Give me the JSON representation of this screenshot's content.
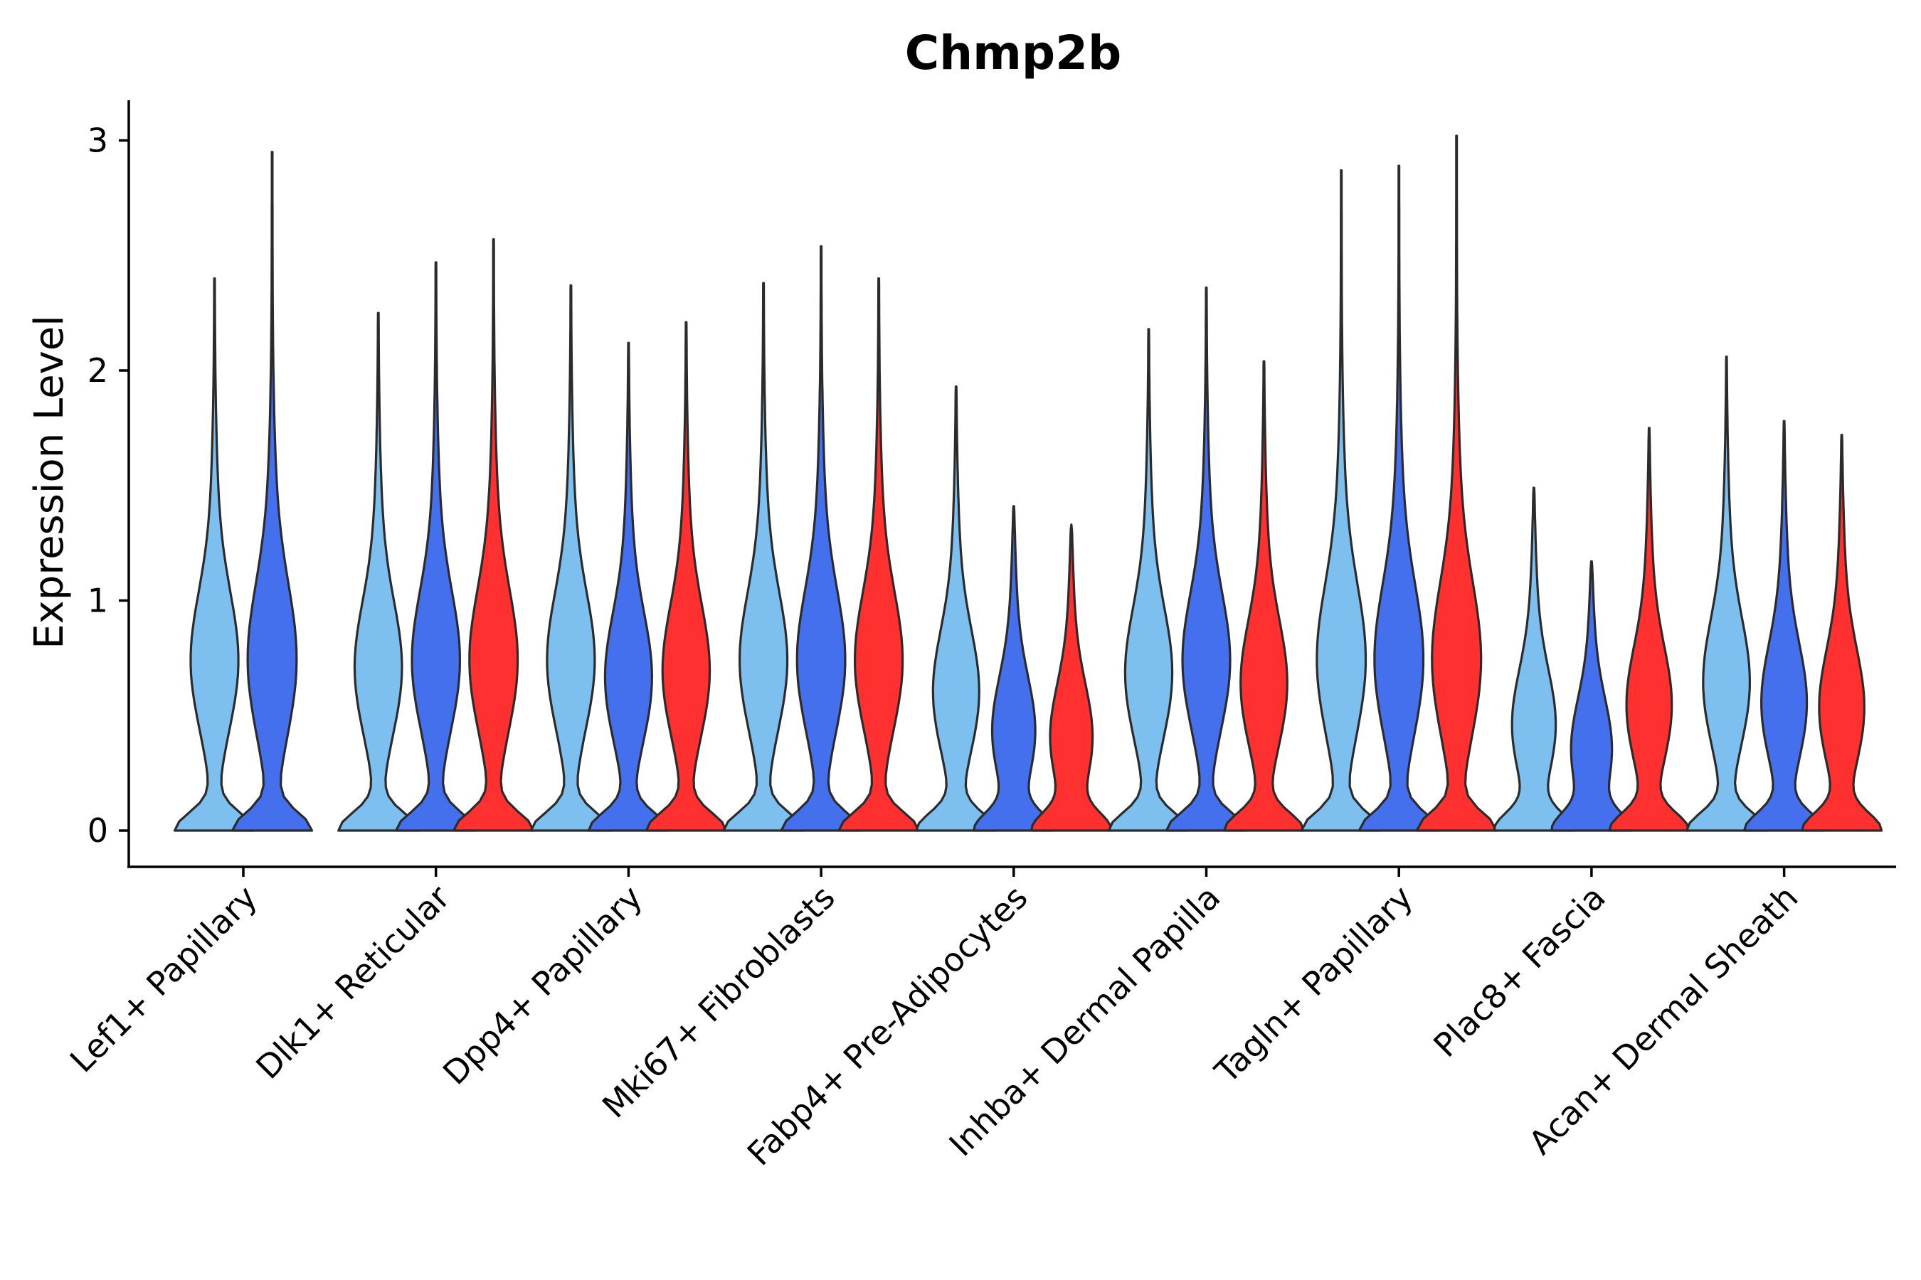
{
  "chart_data": {
    "type": "violin",
    "title": "Chmp2b",
    "xlabel": "",
    "ylabel": "Expression Level",
    "ylim": [
      -0.15,
      3.2
    ],
    "yticks": [
      0,
      1,
      2,
      3
    ],
    "grid": false,
    "legend": "none",
    "colors": [
      "#7DBFEE",
      "#4470EE",
      "#FF3030"
    ],
    "categories": [
      "Lef1+ Papillary",
      "Dlk1+ Reticular",
      "Dpp4+ Papillary",
      "Mki67+ Fibroblasts",
      "Fabp4+ Pre-Adipocytes",
      "Inhba+ Dermal Papilla",
      "Tagln+ Papillary",
      "Plac8+ Fascia",
      "Acan+ Dermal Sheath"
    ],
    "groups": [
      {
        "category": "Lef1+ Papillary",
        "violins": [
          {
            "color": "#7DBFEE",
            "max": 2.4
          },
          {
            "color": "#4470EE",
            "max": 2.95
          }
        ]
      },
      {
        "category": "Dlk1+ Reticular",
        "violins": [
          {
            "color": "#7DBFEE",
            "max": 2.25
          },
          {
            "color": "#4470EE",
            "max": 2.47
          },
          {
            "color": "#FF3030",
            "max": 2.57
          }
        ]
      },
      {
        "category": "Dpp4+ Papillary",
        "violins": [
          {
            "color": "#7DBFEE",
            "max": 2.37
          },
          {
            "color": "#4470EE",
            "max": 2.12
          },
          {
            "color": "#FF3030",
            "max": 2.21
          }
        ]
      },
      {
        "category": "Mki67+ Fibroblasts",
        "violins": [
          {
            "color": "#7DBFEE",
            "max": 2.38
          },
          {
            "color": "#4470EE",
            "max": 2.54
          },
          {
            "color": "#FF3030",
            "max": 2.4
          }
        ]
      },
      {
        "category": "Fabp4+ Pre-Adipocytes",
        "violins": [
          {
            "color": "#7DBFEE",
            "max": 1.93
          },
          {
            "color": "#4470EE",
            "max": 1.41
          },
          {
            "color": "#FF3030",
            "max": 1.33
          }
        ]
      },
      {
        "category": "Inhba+ Dermal Papilla",
        "violins": [
          {
            "color": "#7DBFEE",
            "max": 2.18
          },
          {
            "color": "#4470EE",
            "max": 2.36
          },
          {
            "color": "#FF3030",
            "max": 2.04
          }
        ]
      },
      {
        "category": "Tagln+ Papillary",
        "violins": [
          {
            "color": "#7DBFEE",
            "max": 2.87
          },
          {
            "color": "#4470EE",
            "max": 2.89
          },
          {
            "color": "#FF3030",
            "max": 3.02
          }
        ]
      },
      {
        "category": "Plac8+ Fascia",
        "violins": [
          {
            "color": "#7DBFEE",
            "max": 1.49
          },
          {
            "color": "#4470EE",
            "max": 1.17
          },
          {
            "color": "#FF3030",
            "max": 1.75
          }
        ]
      },
      {
        "category": "Acan+ Dermal Sheath",
        "violins": [
          {
            "color": "#7DBFEE",
            "max": 2.06
          },
          {
            "color": "#4470EE",
            "max": 1.78
          },
          {
            "color": "#FF3030",
            "max": 1.72
          }
        ]
      }
    ]
  }
}
